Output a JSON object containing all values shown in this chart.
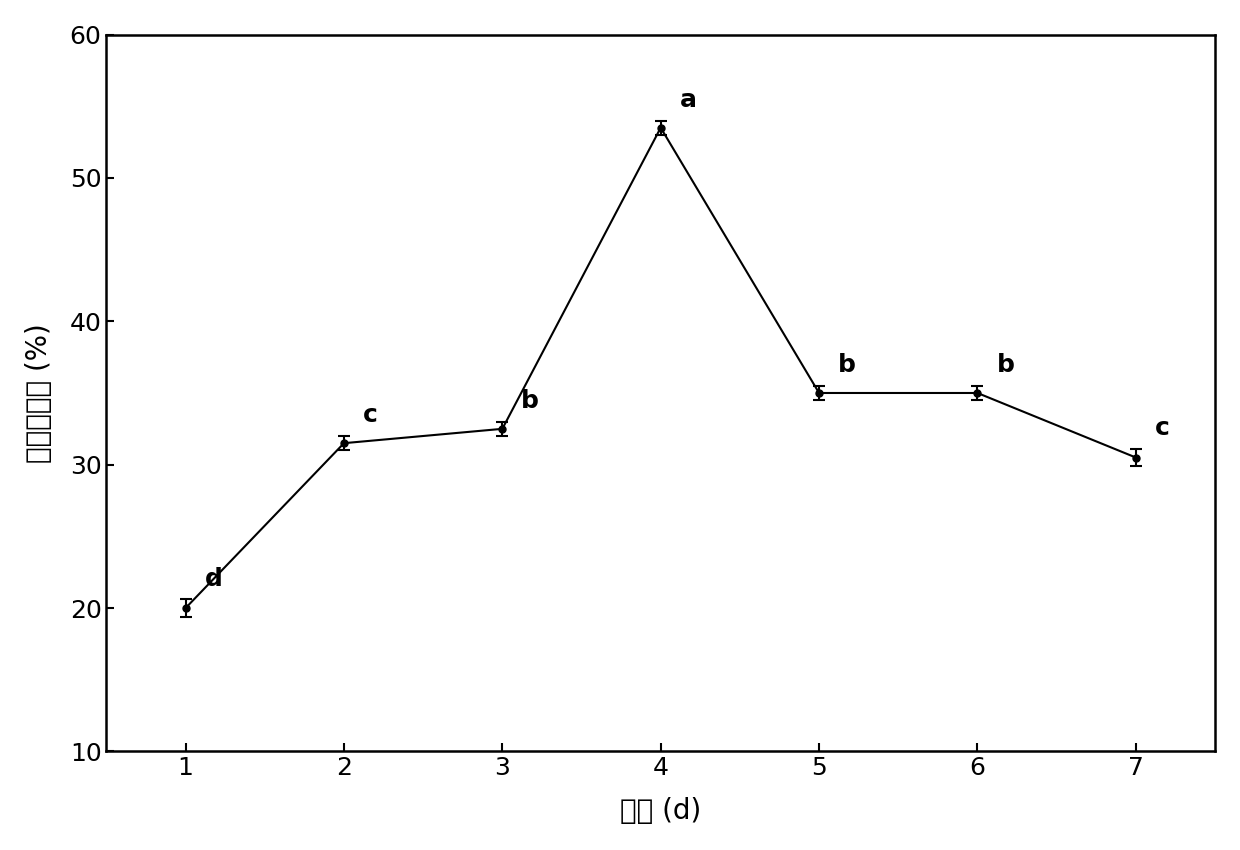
{
  "x": [
    1,
    2,
    3,
    4,
    5,
    6,
    7
  ],
  "y": [
    20.0,
    31.5,
    32.5,
    53.5,
    35.0,
    35.0,
    30.5
  ],
  "yerr": [
    0.6,
    0.5,
    0.5,
    0.5,
    0.5,
    0.5,
    0.6
  ],
  "labels": [
    "d",
    "c",
    "b",
    "a",
    "b",
    "b",
    "c"
  ],
  "label_offsets_x": [
    0.12,
    0.12,
    0.12,
    0.12,
    0.12,
    0.12,
    0.12
  ],
  "label_offsets_y": [
    0.6,
    0.6,
    0.6,
    0.6,
    0.6,
    0.6,
    0.6
  ],
  "xlabel": "时间 (d)",
  "ylabel": "鐵载体活性 (%)",
  "ylim": [
    10,
    60
  ],
  "xlim": [
    0.5,
    7.5
  ],
  "yticks": [
    10,
    20,
    30,
    40,
    50,
    60
  ],
  "xticks": [
    1,
    2,
    3,
    4,
    5,
    6,
    7
  ],
  "line_color": "#000000",
  "marker": "o",
  "marker_size": 5,
  "line_width": 1.5,
  "bg_color": "#ffffff",
  "tick_fontsize": 18,
  "label_fontsize": 20,
  "annotation_fontsize": 18
}
